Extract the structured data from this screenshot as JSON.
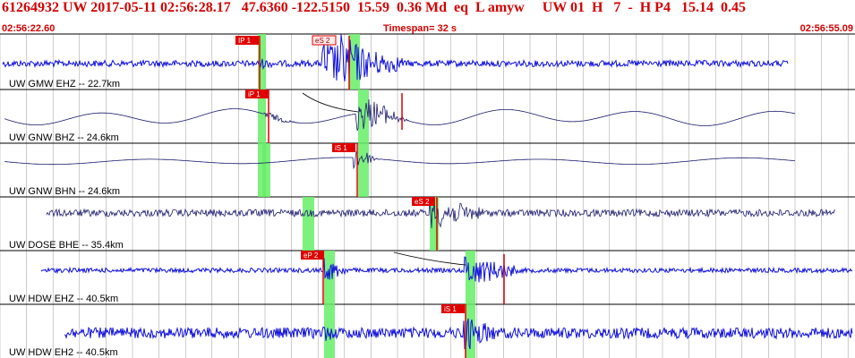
{
  "header": {
    "event_line": "61264932 UW 2017-05-11 02:56:28.17   47.6360 -122.5150  15.59  0.36 Md  eq  L amyw     UW 01  H   7  -  H P4   15.14  0.45",
    "time_start": "02:56:22.60",
    "timespan": "Timespan=  32 s",
    "time_end": "02:56:55.09"
  },
  "colors": {
    "header_text": "#d40000",
    "trace_blue": "#1010dd",
    "trace_dark": "#1a1a6e",
    "pick_red": "#e00000",
    "green_band": "#66ee66",
    "grid": "#9a9a9a"
  },
  "channels": [
    {
      "label": "UW GMW EHZ -- 22.7km",
      "picks": [
        {
          "text": "IP 1"
        },
        {
          "text": "eS 2"
        }
      ]
    },
    {
      "label": "UW GNW BHZ -- 24.6km",
      "picks": [
        {
          "text": "iP 1"
        }
      ]
    },
    {
      "label": "UW GNW BHN -- 24.6km",
      "picks": [
        {
          "text": "iS 1"
        }
      ]
    },
    {
      "label": "UW DOSE BHE -- 35.4km",
      "picks": [
        {
          "text": "eS 2"
        }
      ]
    },
    {
      "label": "UW HDW EHZ -- 40.5km",
      "picks": [
        {
          "text": "eP 2"
        }
      ]
    },
    {
      "label": "UW HDW EH2 -- 40.5km",
      "picks": [
        {
          "text": "iS 1"
        }
      ]
    }
  ]
}
